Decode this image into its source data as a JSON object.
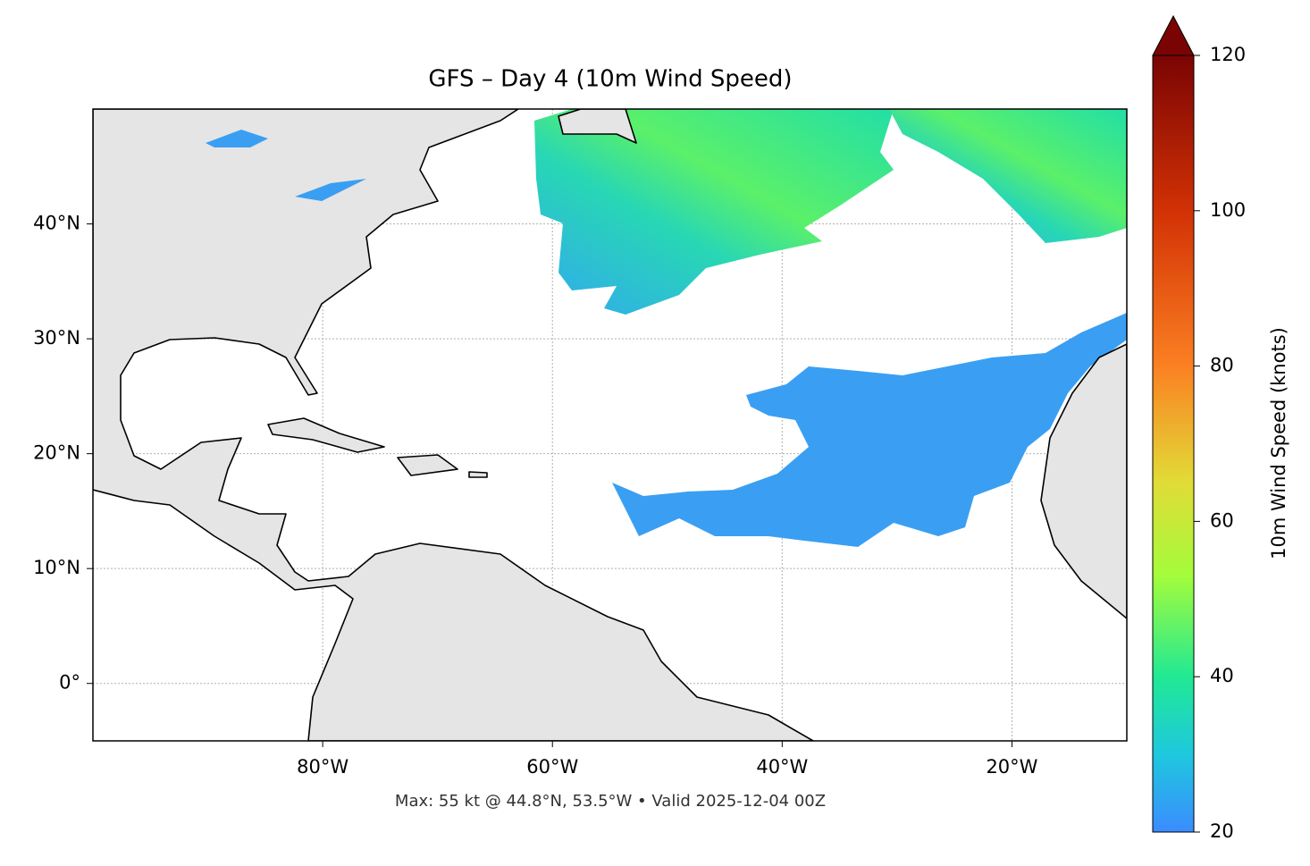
{
  "map": {
    "title": "GFS – Day 4 (10m Wind Speed)",
    "footer": "Max: 55 kt @ 44.8°N, 53.5°W • Valid 2025-12-04 00Z",
    "xlim": [
      -100,
      -10
    ],
    "ylim": [
      -5,
      50
    ],
    "xticks": [
      {
        "value": -80,
        "label": "80°W"
      },
      {
        "value": -60,
        "label": "60°W"
      },
      {
        "value": -40,
        "label": "40°W"
      },
      {
        "value": -20,
        "label": "20°W"
      }
    ],
    "yticks": [
      {
        "value": 0,
        "label": "0°"
      },
      {
        "value": 10,
        "label": "10°N"
      },
      {
        "value": 20,
        "label": "20°N"
      },
      {
        "value": 30,
        "label": "30°N"
      },
      {
        "value": 40,
        "label": "40°N"
      }
    ],
    "grid": true,
    "colorbar": {
      "label": "10m Wind Speed (knots)",
      "lim": [
        20,
        120
      ],
      "ticks": [
        20,
        40,
        60,
        80,
        100,
        120
      ]
    }
  }
}
